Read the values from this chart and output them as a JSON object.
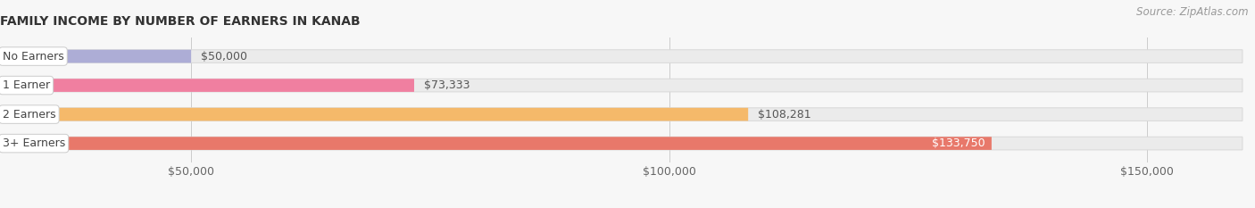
{
  "title": "FAMILY INCOME BY NUMBER OF EARNERS IN KANAB",
  "source": "Source: ZipAtlas.com",
  "categories": [
    "No Earners",
    "1 Earner",
    "2 Earners",
    "3+ Earners"
  ],
  "values": [
    50000,
    73333,
    108281,
    133750
  ],
  "labels": [
    "$50,000",
    "$73,333",
    "$108,281",
    "$133,750"
  ],
  "bar_colors": [
    "#adadd6",
    "#f07fa0",
    "#f5b96a",
    "#e8786a"
  ],
  "bar_bg_color": "#ebebeb",
  "bar_border_color": "#d8d8d8",
  "background_color": "#f7f7f7",
  "xmin": 30000,
  "xmax": 160000,
  "xticks": [
    50000,
    100000,
    150000
  ],
  "xtick_labels": [
    "$50,000",
    "$100,000",
    "$150,000"
  ],
  "title_fontsize": 10,
  "label_fontsize": 9,
  "tick_fontsize": 9,
  "source_fontsize": 8.5,
  "label_3plus_inside": true
}
